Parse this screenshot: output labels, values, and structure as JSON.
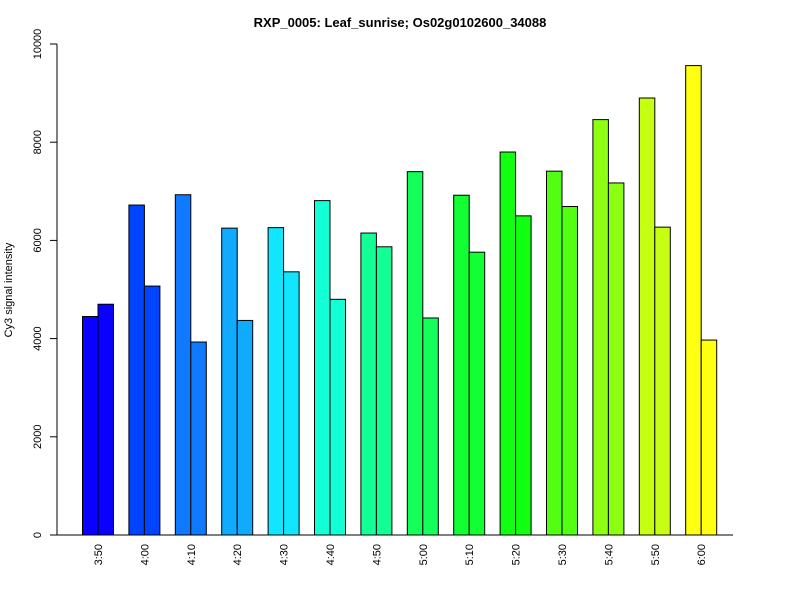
{
  "chart_data": {
    "type": "bar",
    "title": "RXP_0005: Leaf_sunrise; Os02g0102600_34088",
    "xlabel": "",
    "ylabel": "Cy3 signal intensity",
    "ylim": [
      0,
      10000
    ],
    "yticks": [
      0,
      2000,
      4000,
      6000,
      8000,
      10000
    ],
    "y_tick_labels": [
      "0",
      "2000",
      "4000",
      "6000",
      "8000",
      "10000"
    ],
    "grid": false,
    "legend": "none",
    "categories": [
      "3:50",
      "4:00",
      "4:10",
      "4:20",
      "4:30",
      "4:40",
      "4:50",
      "5:00",
      "5:10",
      "5:20",
      "5:30",
      "5:40",
      "5:50",
      "6:00"
    ],
    "colors": [
      "#0a00ff",
      "#0044ff",
      "#0f79ff",
      "#10aaff",
      "#12e6ff",
      "#13ffd6",
      "#13ff96",
      "#14ff5a",
      "#12ff33",
      "#12ff12",
      "#52ff12",
      "#8cff12",
      "#c6ff12",
      "#ffff12"
    ],
    "series": [
      {
        "values": [
          4450,
          6720,
          6930,
          6250,
          6260,
          6810,
          6150,
          7400,
          6920,
          7800,
          7410,
          8460,
          8900,
          9560
        ]
      },
      {
        "values": [
          4700,
          5070,
          3930,
          4370,
          5360,
          4800,
          5870,
          4420,
          5760,
          6500,
          6690,
          7170,
          6270,
          3970
        ]
      }
    ]
  }
}
